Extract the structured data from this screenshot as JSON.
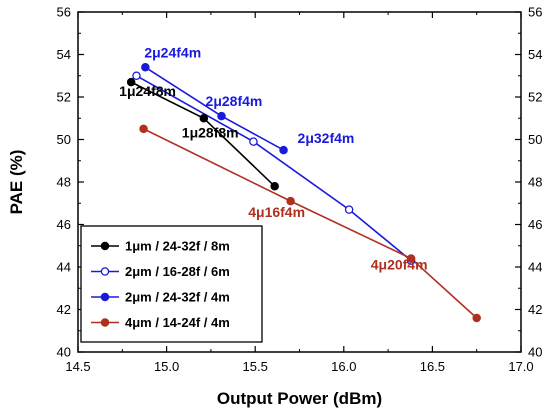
{
  "chart_data": {
    "type": "line",
    "xlabel": "Output Power (dBm)",
    "ylabel": "PAE (%)",
    "xlim": [
      14.5,
      17.0
    ],
    "ylim": [
      40,
      56
    ],
    "xticks": [
      "14.5",
      "15.0",
      "15.5",
      "16.0",
      "16.5",
      "17.0"
    ],
    "yticks": [
      "40",
      "42",
      "44",
      "46",
      "48",
      "50",
      "52",
      "54",
      "56"
    ],
    "y2ticks": [
      "40",
      "42",
      "44",
      "46",
      "48",
      "50",
      "52",
      "54",
      "56"
    ],
    "legend_position": "bottom-left",
    "series": [
      {
        "name": "1μm / 24-32f / 8m",
        "color": "#000000",
        "marker": "filled",
        "points": [
          [
            14.8,
            52.7
          ],
          [
            15.21,
            51.0
          ],
          [
            15.61,
            47.8
          ]
        ]
      },
      {
        "name": "2μm / 16-28f / 6m",
        "color": "#1a1adc",
        "marker": "open",
        "points": [
          [
            14.83,
            53.0
          ],
          [
            15.49,
            49.9
          ],
          [
            16.03,
            46.7
          ],
          [
            16.38,
            44.3
          ]
        ]
      },
      {
        "name": "2μm / 24-32f / 4m",
        "color": "#1a1adc",
        "marker": "filled",
        "points": [
          [
            14.88,
            53.4
          ],
          [
            15.31,
            51.1
          ],
          [
            15.66,
            49.5
          ]
        ]
      },
      {
        "name": "4μm / 14-24f / 4m",
        "color": "#b03020",
        "marker": "filled",
        "points": [
          [
            14.87,
            50.5
          ],
          [
            15.7,
            47.1
          ],
          [
            16.38,
            44.4
          ],
          [
            16.75,
            41.6
          ]
        ]
      }
    ],
    "annotations": [
      {
        "text": "2μ24f4m",
        "x": 14.88,
        "y": 53.4,
        "color": "#1a1adc"
      },
      {
        "text": "1μ24f8m",
        "x": 14.8,
        "y": 52.7,
        "color": "#000000"
      },
      {
        "text": "2μ28f4m",
        "x": 15.31,
        "y": 51.1,
        "color": "#1a1adc"
      },
      {
        "text": "1μ28f8m",
        "x": 15.21,
        "y": 51.0,
        "color": "#000000"
      },
      {
        "text": "2μ32f4m",
        "x": 15.66,
        "y": 49.5,
        "color": "#1a1adc"
      },
      {
        "text": "4μ16f4m",
        "x": 15.7,
        "y": 47.1,
        "color": "#b03020"
      },
      {
        "text": "4μ20f4m",
        "x": 16.38,
        "y": 44.4,
        "color": "#b03020"
      }
    ]
  }
}
